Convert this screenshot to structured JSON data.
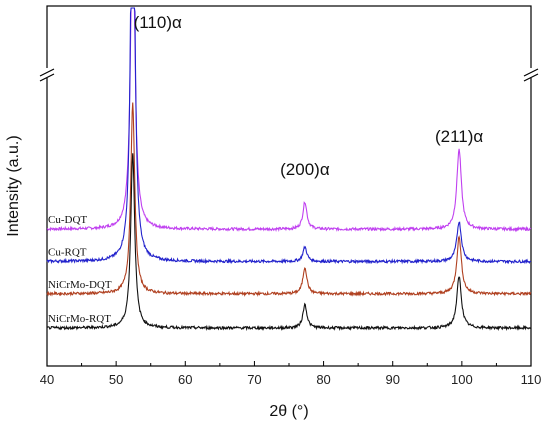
{
  "chart_data": {
    "type": "line",
    "xlabel": "2θ (°)",
    "ylabel": "Intensity (a.u.)",
    "xlim": [
      40,
      110
    ],
    "x_ticks": [
      "40",
      "50",
      "60",
      "70",
      "80",
      "90",
      "100",
      "110"
    ],
    "y_axis_break": true,
    "grid": false,
    "peak_labels": [
      {
        "text": "(110)α",
        "x": 52.4
      },
      {
        "text": "(200)α",
        "x": 77.3
      },
      {
        "text": "(211)α",
        "x": 99.6
      }
    ],
    "series": [
      {
        "name": "Cu-DQT",
        "color": "#c040f0",
        "baseline": 2.6,
        "peaks": [
          {
            "x": 52.4,
            "height": 9.0,
            "width": 0.35
          },
          {
            "x": 77.3,
            "height": 0.72,
            "width": 0.35
          },
          {
            "x": 99.6,
            "height": 2.1,
            "width": 0.4
          }
        ]
      },
      {
        "name": "Cu-RQT",
        "color": "#2222cc",
        "baseline": 1.75,
        "peaks": [
          {
            "x": 52.4,
            "height": 14.0,
            "width": 0.3
          },
          {
            "x": 77.3,
            "height": 0.38,
            "width": 0.35
          },
          {
            "x": 99.6,
            "height": 1.05,
            "width": 0.4
          }
        ]
      },
      {
        "name": "NiCrMo-DQT",
        "color": "#b04020",
        "baseline": 0.9,
        "peaks": [
          {
            "x": 52.4,
            "height": 5.0,
            "width": 0.35
          },
          {
            "x": 77.3,
            "height": 0.7,
            "width": 0.35
          },
          {
            "x": 99.6,
            "height": 1.5,
            "width": 0.4
          }
        ]
      },
      {
        "name": "NiCrMo-RQT",
        "color": "#111111",
        "baseline": 0.0,
        "peaks": [
          {
            "x": 52.4,
            "height": 4.6,
            "width": 0.35
          },
          {
            "x": 77.3,
            "height": 0.62,
            "width": 0.35
          },
          {
            "x": 99.6,
            "height": 1.35,
            "width": 0.4
          }
        ]
      }
    ]
  }
}
